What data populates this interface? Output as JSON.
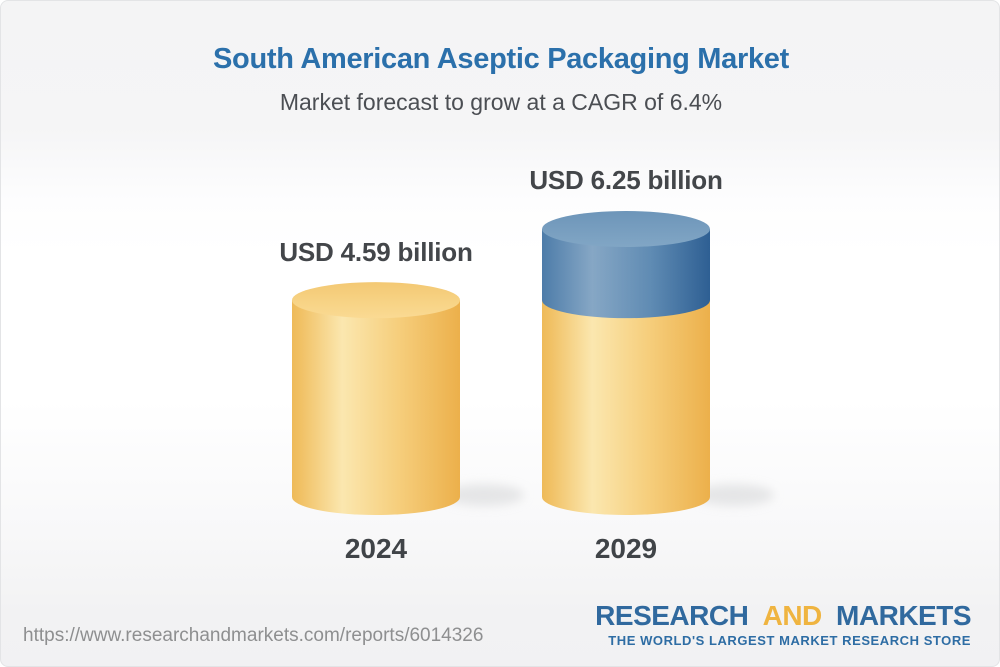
{
  "header": {
    "title": "South American Aseptic Packaging Market",
    "subtitle": "Market forecast to grow at a CAGR of 6.4%"
  },
  "chart_data": {
    "type": "bar",
    "style": "3d-cylinder",
    "title": "South American Aseptic Packaging Market",
    "subtitle": "Market forecast to grow at a CAGR of 6.4%",
    "cagr_percent": 6.4,
    "unit": "USD billion",
    "categories": [
      "2024",
      "2029"
    ],
    "values": [
      4.59,
      6.25
    ],
    "value_labels": [
      "USD 4.59 billion",
      "USD 6.25 billion"
    ],
    "series": [
      {
        "name": "base",
        "color": "#F6CB79",
        "values": [
          4.59,
          4.59
        ]
      },
      {
        "name": "growth",
        "color": "#4E7CA9",
        "values": [
          0,
          1.66
        ]
      }
    ],
    "ylim": [
      0,
      6.25
    ],
    "legend": false,
    "colors": {
      "base_cylinder": "#F6CB79",
      "growth_segment": "#4E7CA9",
      "label_text": "#43464A"
    }
  },
  "footer": {
    "url": "https://www.researchandmarkets.com/reports/6014326",
    "logo": {
      "word1": "RESEARCH",
      "word2": "AND",
      "word3": "MARKETS",
      "tagline": "THE WORLD'S LARGEST MARKET RESEARCH STORE",
      "blue": "#30699E",
      "gold": "#EFB440"
    }
  }
}
